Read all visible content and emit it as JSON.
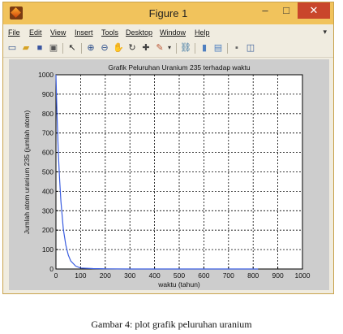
{
  "window": {
    "title": "Figure 1",
    "minimize_glyph": "–",
    "maximize_glyph": "□",
    "close_glyph": "✕"
  },
  "menu": {
    "items": [
      "File",
      "Edit",
      "View",
      "Insert",
      "Tools",
      "Desktop",
      "Window",
      "Help"
    ],
    "overflow_glyph": "▾"
  },
  "toolbar": {
    "icons": [
      "new-figure-icon",
      "open-file-icon",
      "save-icon",
      "print-icon",
      "pointer-icon",
      "zoom-in-icon",
      "zoom-out-icon",
      "pan-icon",
      "rotate-icon",
      "data-cursor-icon",
      "brush-icon",
      "link-icon",
      "colorbar-icon",
      "legend-icon",
      "hide-plot-tools-icon",
      "show-plot-tools-icon"
    ]
  },
  "chart_data": {
    "type": "line",
    "title": "Grafik Peluruhan Uranium 235 terhadap waktu",
    "xlabel": "waktu (tahun)",
    "ylabel": "Jumlah atom uranium 235 (jumlah atom)",
    "xlim": [
      0,
      1000
    ],
    "ylim": [
      0,
      1000
    ],
    "xticks": [
      0,
      100,
      200,
      300,
      400,
      500,
      600,
      700,
      800,
      900,
      1000
    ],
    "yticks": [
      0,
      100,
      200,
      300,
      400,
      500,
      600,
      700,
      800,
      900,
      1000
    ],
    "grid": true,
    "series": [
      {
        "color": "#3a5de0",
        "x": [
          0,
          5,
          10,
          15,
          20,
          30,
          40,
          50,
          60,
          80,
          100,
          150,
          200,
          300,
          400,
          500,
          600,
          700,
          800,
          820
        ],
        "y": [
          1000,
          770,
          590,
          455,
          350,
          205,
          122,
          72,
          42,
          15,
          5,
          2,
          1,
          0,
          0,
          0,
          0,
          0,
          0,
          0
        ]
      }
    ]
  },
  "caption": "Gambar 4: plot grafik peluruhan uranium"
}
